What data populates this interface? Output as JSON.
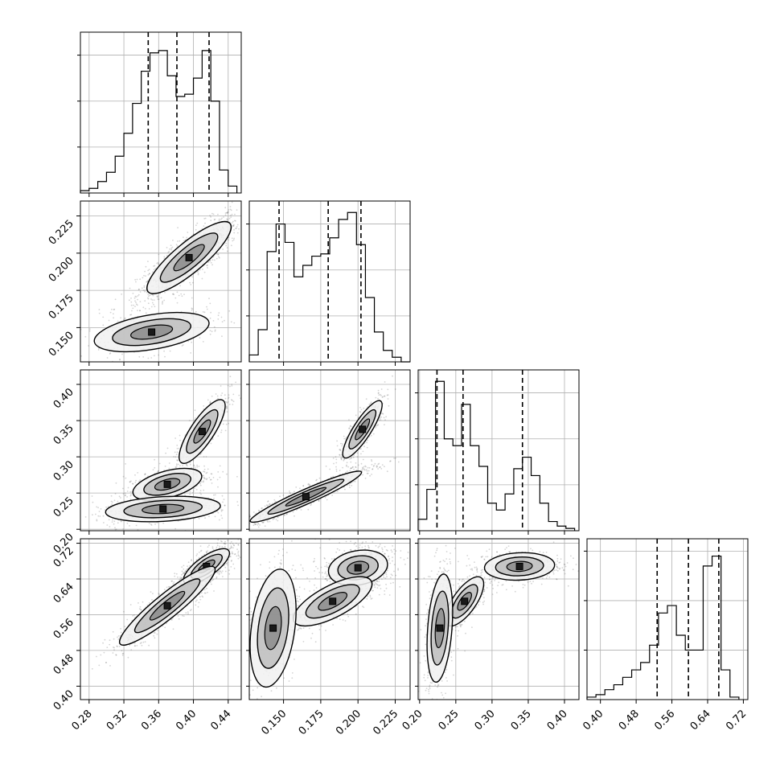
{
  "chart_data": {
    "type": "corner",
    "parameters": [
      {
        "index": 0,
        "range": [
          0.27,
          0.455
        ],
        "ticks": [
          0.28,
          0.32,
          0.36,
          0.4,
          0.44
        ],
        "tick_labels": [
          "0.28",
          "0.32",
          "0.36",
          "0.40",
          "0.44"
        ]
      },
      {
        "index": 1,
        "range": [
          0.127,
          0.235
        ],
        "ticks": [
          0.15,
          0.175,
          0.2,
          0.225
        ],
        "tick_labels": [
          "0.150",
          "0.175",
          "0.200",
          "0.225"
        ]
      },
      {
        "index": 2,
        "range": [
          0.198,
          0.42
        ],
        "ticks": [
          0.2,
          0.25,
          0.3,
          0.35,
          0.4
        ],
        "tick_labels": [
          "0.20",
          "0.25",
          "0.30",
          "0.35",
          "0.40"
        ]
      },
      {
        "index": 3,
        "range": [
          0.37,
          0.73
        ],
        "ticks": [
          0.4,
          0.48,
          0.56,
          0.64,
          0.72
        ],
        "tick_labels": [
          "0.40",
          "0.48",
          "0.56",
          "0.64",
          "0.72"
        ]
      }
    ],
    "histograms": [
      {
        "param": 0,
        "edges": [
          0.27,
          0.28,
          0.29,
          0.3,
          0.31,
          0.32,
          0.33,
          0.34,
          0.35,
          0.36,
          0.37,
          0.38,
          0.39,
          0.4,
          0.41,
          0.42,
          0.43,
          0.44,
          0.45
        ],
        "counts": [
          1,
          2,
          5,
          9,
          16,
          26,
          39,
          53,
          61,
          62,
          51,
          42,
          43,
          50,
          62,
          40,
          10,
          3
        ],
        "ymax": 70,
        "quantiles": [
          0.348,
          0.381,
          0.418
        ]
      },
      {
        "param": 1,
        "edges": [
          0.127,
          0.133,
          0.139,
          0.145,
          0.151,
          0.157,
          0.163,
          0.169,
          0.175,
          0.181,
          0.187,
          0.193,
          0.199,
          0.205,
          0.211,
          0.217,
          0.223,
          0.229,
          0.235
        ],
        "counts": [
          3,
          14,
          48,
          60,
          52,
          37,
          42,
          46,
          47,
          54,
          62,
          65,
          51,
          28,
          13,
          5,
          2,
          0
        ],
        "ymax": 70,
        "quantiles": [
          0.147,
          0.18,
          0.202
        ]
      },
      {
        "param": 2,
        "edges": [
          0.198,
          0.21,
          0.222,
          0.234,
          0.246,
          0.258,
          0.27,
          0.282,
          0.294,
          0.306,
          0.318,
          0.33,
          0.342,
          0.354,
          0.366,
          0.378,
          0.39,
          0.402,
          0.414
        ],
        "counts": [
          5,
          18,
          65,
          40,
          37,
          55,
          37,
          28,
          12,
          9,
          16,
          27,
          32,
          24,
          12,
          4,
          2,
          1
        ],
        "ymax": 70,
        "quantiles": [
          0.224,
          0.26,
          0.342
        ]
      },
      {
        "param": 3,
        "edges": [
          0.37,
          0.39,
          0.41,
          0.43,
          0.45,
          0.47,
          0.49,
          0.51,
          0.53,
          0.55,
          0.57,
          0.59,
          0.61,
          0.63,
          0.65,
          0.67,
          0.69,
          0.71
        ],
        "counts": [
          1,
          2,
          4,
          6,
          9,
          12,
          15,
          22,
          35,
          38,
          26,
          20,
          20,
          54,
          58,
          12,
          1
        ],
        "ymax": 65,
        "quantiles": [
          0.527,
          0.597,
          0.665
        ]
      }
    ],
    "scatter_panels": [
      {
        "x": 0,
        "y": 1,
        "modes": [
          {
            "mean": [
              0.395,
              0.197
            ],
            "sd": [
              0.022,
              0.011
            ],
            "corr": 0.85,
            "weight": 0.75
          },
          {
            "mean": [
              0.352,
              0.147
            ],
            "sd": [
              0.03,
              0.006
            ],
            "corr": 0.45,
            "weight": 0.25
          }
        ]
      },
      {
        "x": 0,
        "y": 2,
        "modes": [
          {
            "mean": [
              0.41,
              0.335
            ],
            "sd": [
              0.012,
              0.02
            ],
            "corr": 0.8,
            "weight": 0.35
          },
          {
            "mean": [
              0.37,
              0.262
            ],
            "sd": [
              0.018,
              0.01
            ],
            "corr": 0.5,
            "weight": 0.35
          },
          {
            "mean": [
              0.365,
              0.228
            ],
            "sd": [
              0.03,
              0.008
            ],
            "corr": 0.25,
            "weight": 0.3
          }
        ]
      },
      {
        "x": 0,
        "y": 3,
        "modes": [
          {
            "mean": [
              0.415,
              0.668
            ],
            "sd": [
              0.012,
              0.018
            ],
            "corr": 0.75,
            "weight": 0.5
          },
          {
            "mean": [
              0.37,
              0.58
            ],
            "sd": [
              0.025,
              0.04
            ],
            "corr": 0.92,
            "weight": 0.5
          }
        ]
      },
      {
        "x": 1,
        "y": 2,
        "modes": [
          {
            "mean": [
              0.203,
              0.338
            ],
            "sd": [
              0.006,
              0.018
            ],
            "corr": 0.85,
            "weight": 0.35
          },
          {
            "mean": [
              0.165,
              0.245
            ],
            "sd": [
              0.017,
              0.016
            ],
            "corr": 0.95,
            "weight": 0.65
          }
        ]
      },
      {
        "x": 1,
        "y": 3,
        "modes": [
          {
            "mean": [
              0.2,
              0.665
            ],
            "sd": [
              0.009,
              0.018
            ],
            "corr": 0.2,
            "weight": 0.4
          },
          {
            "mean": [
              0.183,
              0.59
            ],
            "sd": [
              0.012,
              0.025
            ],
            "corr": 0.7,
            "weight": 0.3
          },
          {
            "mean": [
              0.143,
              0.53
            ],
            "sd": [
              0.007,
              0.06
            ],
            "corr": 0.3,
            "weight": 0.3
          }
        ]
      },
      {
        "x": 2,
        "y": 3,
        "modes": [
          {
            "mean": [
              0.338,
              0.668
            ],
            "sd": [
              0.022,
              0.014
            ],
            "corr": 0.1,
            "weight": 0.35
          },
          {
            "mean": [
              0.262,
              0.59
            ],
            "sd": [
              0.012,
              0.025
            ],
            "corr": 0.7,
            "weight": 0.3
          },
          {
            "mean": [
              0.228,
              0.53
            ],
            "sd": [
              0.008,
              0.055
            ],
            "corr": 0.3,
            "weight": 0.35
          }
        ]
      }
    ],
    "grid": true,
    "title": "",
    "axis_labels": []
  }
}
